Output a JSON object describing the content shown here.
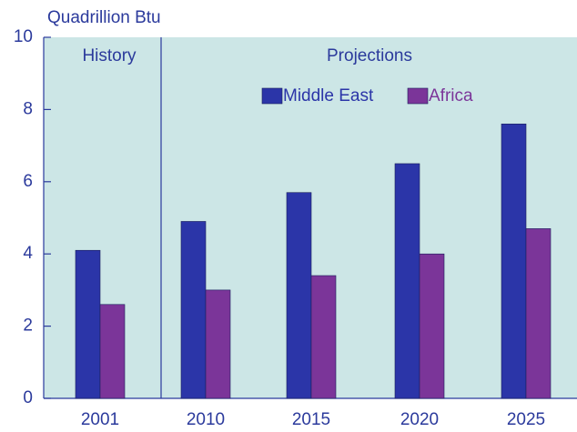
{
  "chart_data": {
    "type": "bar",
    "y_axis_label": "Quadrillion Btu",
    "annotations": [
      "History",
      "Projections"
    ],
    "categories": [
      "2001",
      "2010",
      "2015",
      "2020",
      "2025"
    ],
    "series": [
      {
        "name": "Middle East",
        "color": "#2b35a8",
        "values": [
          4.1,
          4.9,
          5.7,
          6.5,
          7.6
        ]
      },
      {
        "name": "Africa",
        "color": "#7b3599",
        "values": [
          2.6,
          3.0,
          3.4,
          4.0,
          4.7
        ]
      }
    ],
    "ylim": [
      0,
      10
    ],
    "yticks": [
      0,
      2,
      4,
      6,
      8,
      10
    ],
    "background": "#cce6e6"
  }
}
